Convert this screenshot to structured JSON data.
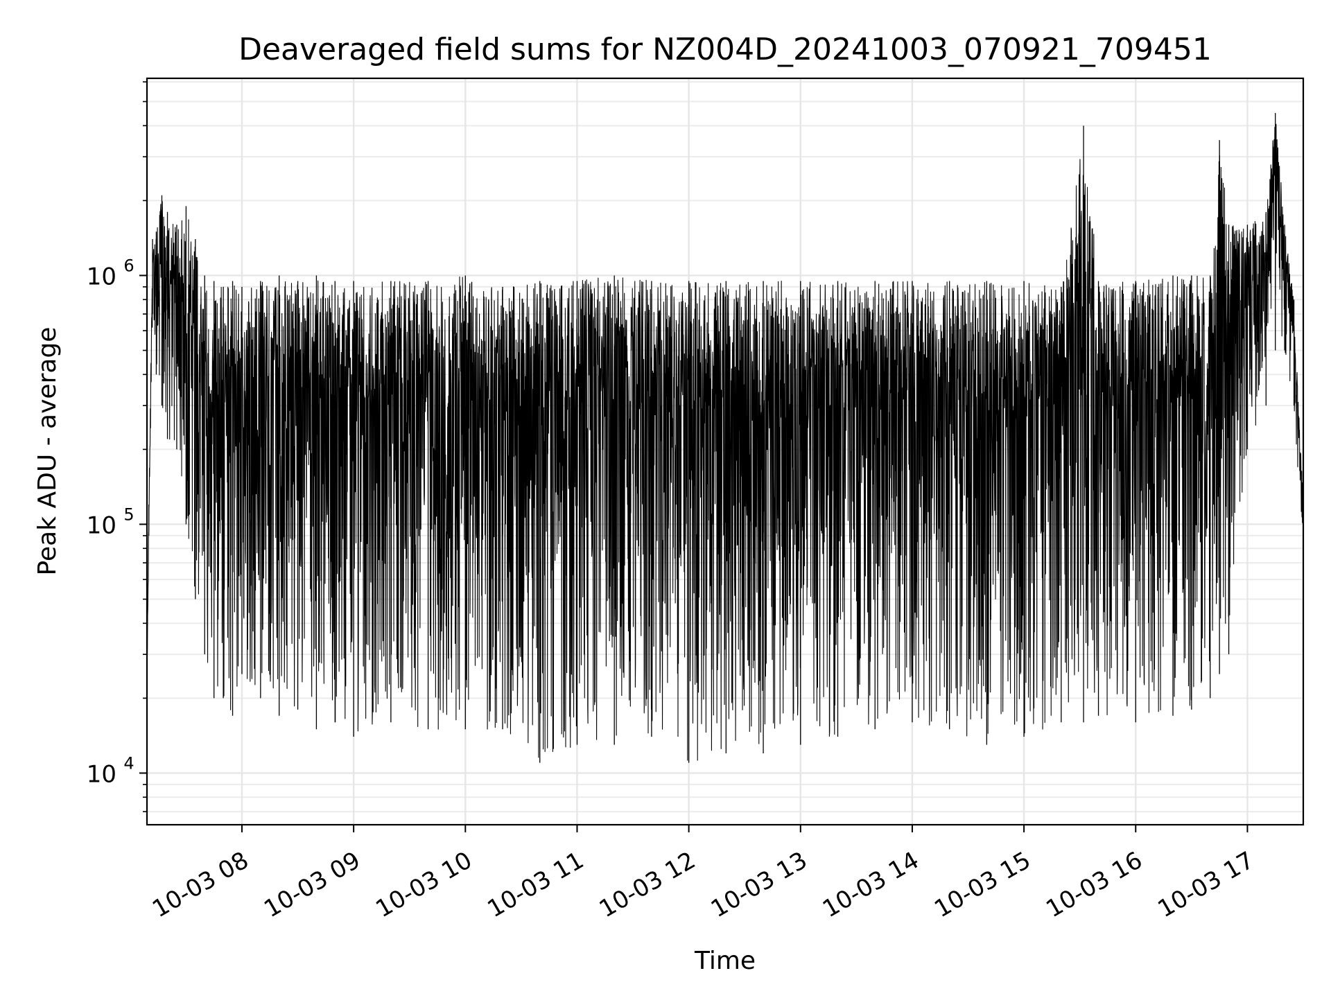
{
  "chart_data": {
    "type": "line",
    "title": "Deaveraged field sums for NZ004D_20241003_070921_709451",
    "xlabel": "Time",
    "ylabel": "Peak ADU - average",
    "y_scale": "log",
    "ylim": [
      6200,
      6200000
    ],
    "xlim": [
      "2024-10-03 07:09",
      "2024-10-03 17:30"
    ],
    "grid": true,
    "line_color": "#000000",
    "x_ticks": [
      {
        "value": "2024-10-03 08:00",
        "label": "10-03 08"
      },
      {
        "value": "2024-10-03 09:00",
        "label": "10-03 09"
      },
      {
        "value": "2024-10-03 10:00",
        "label": "10-03 10"
      },
      {
        "value": "2024-10-03 11:00",
        "label": "10-03 11"
      },
      {
        "value": "2024-10-03 12:00",
        "label": "10-03 12"
      },
      {
        "value": "2024-10-03 13:00",
        "label": "10-03 13"
      },
      {
        "value": "2024-10-03 14:00",
        "label": "10-03 14"
      },
      {
        "value": "2024-10-03 15:00",
        "label": "10-03 15"
      },
      {
        "value": "2024-10-03 16:00",
        "label": "10-03 16"
      },
      {
        "value": "2024-10-03 17:00",
        "label": "10-03 17"
      }
    ],
    "y_ticks": [
      {
        "value": 10000,
        "base": "10",
        "exp": "4"
      },
      {
        "value": 100000,
        "base": "10",
        "exp": "5"
      },
      {
        "value": 1000000,
        "base": "10",
        "exp": "6"
      }
    ],
    "series": [
      {
        "x": [
          "2024-10-03 07:09",
          "2024-10-03 07:10",
          "2024-10-03 07:12",
          "2024-10-03 07:14",
          "2024-10-03 07:17",
          "2024-10-03 07:20",
          "2024-10-03 07:25",
          "2024-10-03 07:30",
          "2024-10-03 07:35",
          "2024-10-03 07:40",
          "2024-10-03 07:45",
          "2024-10-03 07:50",
          "2024-10-03 07:55",
          "2024-10-03 08:00",
          "2024-10-03 08:10",
          "2024-10-03 08:20",
          "2024-10-03 08:30",
          "2024-10-03 08:40",
          "2024-10-03 08:50",
          "2024-10-03 09:00",
          "2024-10-03 09:20",
          "2024-10-03 09:40",
          "2024-10-03 10:00",
          "2024-10-03 10:20",
          "2024-10-03 10:40",
          "2024-10-03 11:00",
          "2024-10-03 11:20",
          "2024-10-03 11:40",
          "2024-10-03 12:00",
          "2024-10-03 12:20",
          "2024-10-03 12:40",
          "2024-10-03 13:00",
          "2024-10-03 13:20",
          "2024-10-03 13:40",
          "2024-10-03 14:00",
          "2024-10-03 14:20",
          "2024-10-03 14:40",
          "2024-10-03 15:00",
          "2024-10-03 15:20",
          "2024-10-03 15:32",
          "2024-10-03 15:40",
          "2024-10-03 16:00",
          "2024-10-03 16:20",
          "2024-10-03 16:30",
          "2024-10-03 16:40",
          "2024-10-03 16:45",
          "2024-10-03 16:50",
          "2024-10-03 17:00",
          "2024-10-03 17:10",
          "2024-10-03 17:15",
          "2024-10-03 17:20",
          "2024-10-03 17:25",
          "2024-10-03 17:30"
        ],
        "upper": [
          25000,
          120000,
          1400000,
          1500000,
          2100000,
          1800000,
          1600000,
          1900000,
          1400000,
          1000000,
          950000,
          900000,
          950000,
          900000,
          950000,
          1000000,
          950000,
          1000000,
          950000,
          950000,
          950000,
          950000,
          1000000,
          900000,
          950000,
          950000,
          1000000,
          950000,
          950000,
          950000,
          950000,
          950000,
          950000,
          950000,
          950000,
          950000,
          950000,
          950000,
          900000,
          4000000,
          950000,
          950000,
          1000000,
          1000000,
          1000000,
          3500000,
          1600000,
          1600000,
          1800000,
          4500000,
          1600000,
          800000,
          120000
        ],
        "lower": [
          18000,
          90000,
          700000,
          400000,
          300000,
          220000,
          200000,
          100000,
          50000,
          30000,
          20000,
          20000,
          17000,
          25000,
          20000,
          17000,
          18000,
          15000,
          16000,
          14000,
          16000,
          15000,
          15000,
          15000,
          11000,
          13000,
          13000,
          14000,
          11000,
          12000,
          12000,
          13000,
          14000,
          15000,
          16000,
          15000,
          13000,
          14000,
          16000,
          16000,
          17000,
          16000,
          17000,
          18000,
          20000,
          25000,
          30000,
          200000,
          300000,
          500000,
          500000,
          300000,
          65000
        ]
      }
    ]
  }
}
